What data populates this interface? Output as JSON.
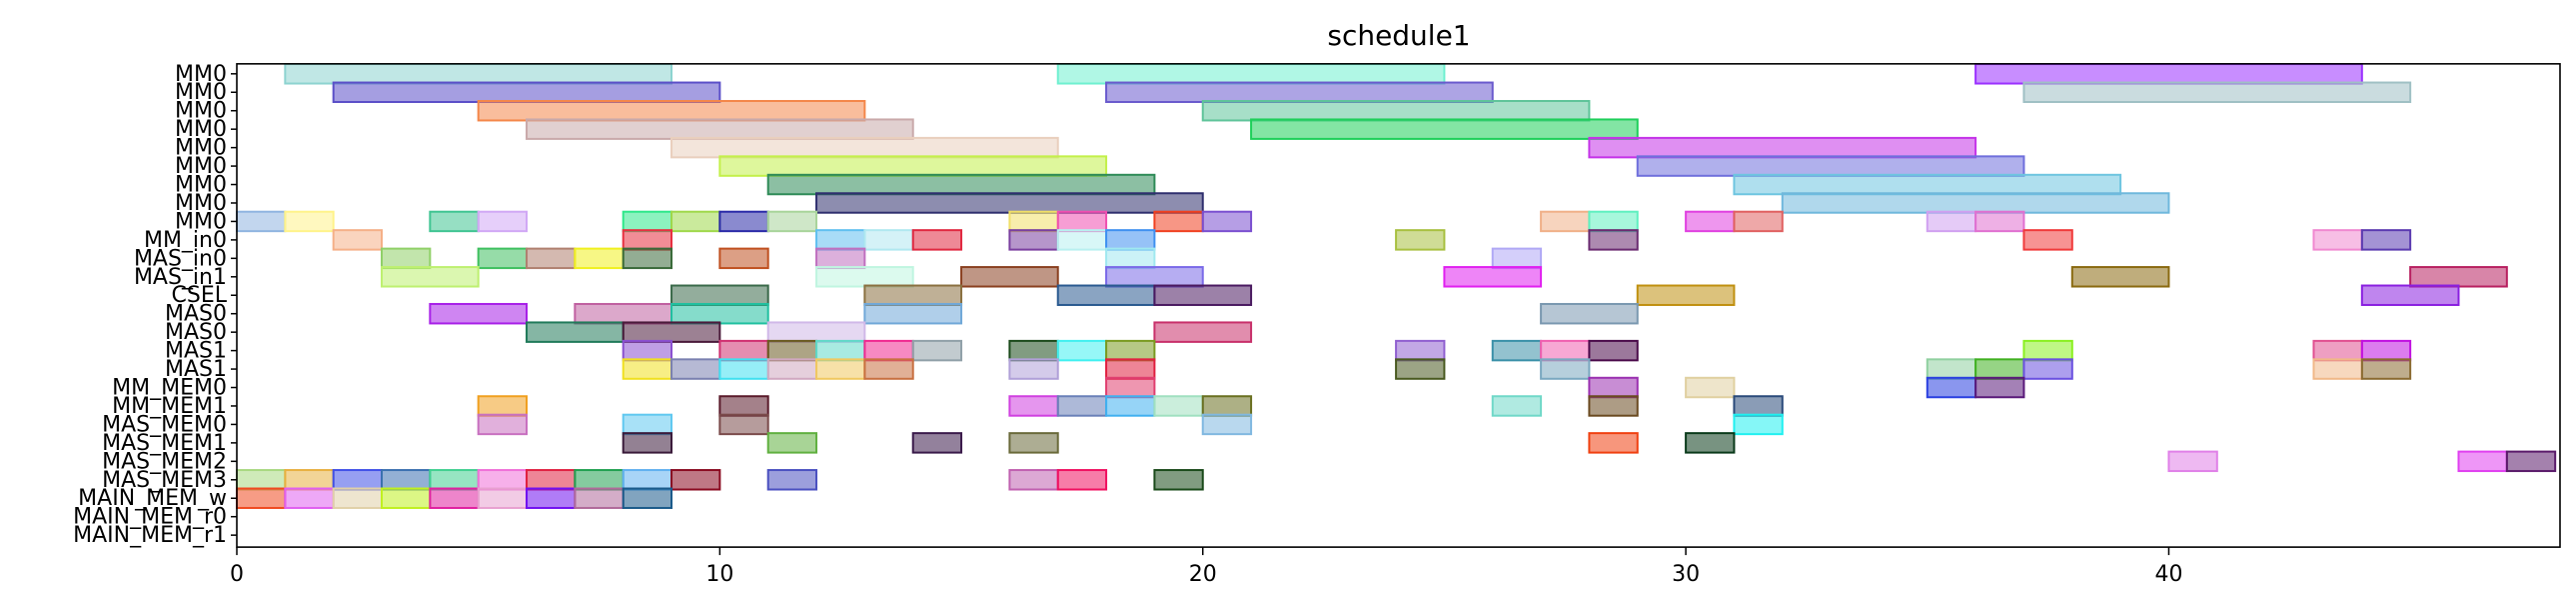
{
  "chart_data": {
    "type": "gantt",
    "title": "schedule1",
    "xlabel": "",
    "ylabel": "",
    "xlim": [
      0,
      48.1
    ],
    "x_ticks": [
      0,
      10,
      20,
      30,
      40
    ],
    "grid": false,
    "rows": [
      "MM0",
      "MM0",
      "MM0",
      "MM0",
      "MM0",
      "MM0",
      "MM0",
      "MM0",
      "MM0",
      "MM_in0",
      "MAS_in0",
      "MAS_in1",
      "CSEL",
      "MAS0",
      "MAS0",
      "MAS1",
      "MAS1",
      "MM_MEM0",
      "MM_MEM1",
      "MAS_MEM0",
      "MAS_MEM1",
      "MAS_MEM2",
      "MAS_MEM3",
      "MAIN_MEM_w",
      "MAIN_MEM_r0",
      "MAIN_MEM_r1"
    ],
    "tasks": [
      {
        "row": 0,
        "start": 1,
        "end": 9,
        "color": "#8dd3d0"
      },
      {
        "row": 0,
        "start": 17,
        "end": 25,
        "color": "#6ff0d0"
      },
      {
        "row": 0,
        "start": 36,
        "end": 44,
        "color": "#9b30ff"
      },
      {
        "row": 1,
        "start": 2,
        "end": 10,
        "color": "#5b4fc8"
      },
      {
        "row": 1,
        "start": 18,
        "end": 26,
        "color": "#6a5acd"
      },
      {
        "row": 1,
        "start": 37,
        "end": 45,
        "color": "#9fc0c4"
      },
      {
        "row": 2,
        "start": 5,
        "end": 13,
        "color": "#f4874a"
      },
      {
        "row": 2,
        "start": 20,
        "end": 28,
        "color": "#5fc49a"
      },
      {
        "row": 3,
        "start": 6,
        "end": 14,
        "color": "#c9a9aa"
      },
      {
        "row": 3,
        "start": 21,
        "end": 29,
        "color": "#1ecf5a"
      },
      {
        "row": 4,
        "start": 9,
        "end": 17,
        "color": "#e9cfbd"
      },
      {
        "row": 4,
        "start": 28,
        "end": 36,
        "color": "#c433e8"
      },
      {
        "row": 5,
        "start": 10,
        "end": 18,
        "color": "#c3f04a"
      },
      {
        "row": 5,
        "start": 29,
        "end": 37,
        "color": "#6f6fdc"
      },
      {
        "row": 6,
        "start": 11,
        "end": 19,
        "color": "#2e8b57"
      },
      {
        "row": 6,
        "start": 31,
        "end": 39,
        "color": "#6ec5e0"
      },
      {
        "row": 7,
        "start": 12,
        "end": 20,
        "color": "#2f2f6e"
      },
      {
        "row": 7,
        "start": 32,
        "end": 40,
        "color": "#6fb8dc"
      },
      {
        "row": 8,
        "start": 0,
        "end": 1,
        "color": "#8fb4e0"
      },
      {
        "row": 8,
        "start": 1,
        "end": 2,
        "color": "#fff38a"
      },
      {
        "row": 8,
        "start": 4,
        "end": 5,
        "color": "#3fc492"
      },
      {
        "row": 8,
        "start": 5,
        "end": 6,
        "color": "#d1a8f5"
      },
      {
        "row": 8,
        "start": 8,
        "end": 9,
        "color": "#2ee88a"
      },
      {
        "row": 8,
        "start": 9,
        "end": 10,
        "color": "#9fd84a"
      },
      {
        "row": 8,
        "start": 10,
        "end": 11,
        "color": "#2a2aa8"
      },
      {
        "row": 8,
        "start": 11,
        "end": 12,
        "color": "#a8d49a"
      },
      {
        "row": 8,
        "start": 16,
        "end": 17,
        "color": "#f0e068"
      },
      {
        "row": 8,
        "start": 17,
        "end": 18,
        "color": "#ef4fb0"
      },
      {
        "row": 8,
        "start": 19,
        "end": 20,
        "color": "#f04020"
      },
      {
        "row": 8,
        "start": 20,
        "end": 21,
        "color": "#7a4fd0"
      },
      {
        "row": 8,
        "start": 27,
        "end": 28,
        "color": "#f0b088"
      },
      {
        "row": 8,
        "start": 28,
        "end": 29,
        "color": "#5ff0c0"
      },
      {
        "row": 8,
        "start": 30,
        "end": 31,
        "color": "#e040e0"
      },
      {
        "row": 8,
        "start": 31,
        "end": 32,
        "color": "#e06060"
      },
      {
        "row": 8,
        "start": 35,
        "end": 36,
        "color": "#d0a0f0"
      },
      {
        "row": 8,
        "start": 36,
        "end": 37,
        "color": "#e070d0"
      },
      {
        "row": 9,
        "start": 2,
        "end": 3,
        "color": "#f5b088"
      },
      {
        "row": 9,
        "start": 8,
        "end": 9,
        "color": "#e83040"
      },
      {
        "row": 9,
        "start": 12,
        "end": 13,
        "color": "#60c0f0"
      },
      {
        "row": 9,
        "start": 13,
        "end": 14,
        "color": "#b0e8f0"
      },
      {
        "row": 9,
        "start": 14,
        "end": 15,
        "color": "#e02840"
      },
      {
        "row": 9,
        "start": 16,
        "end": 17,
        "color": "#7a3fa0"
      },
      {
        "row": 9,
        "start": 17,
        "end": 18,
        "color": "#b8f0f0"
      },
      {
        "row": 9,
        "start": 18,
        "end": 19,
        "color": "#3f90f0"
      },
      {
        "row": 9,
        "start": 24,
        "end": 25,
        "color": "#a8c040"
      },
      {
        "row": 9,
        "start": 28,
        "end": 29,
        "color": "#6a2a70"
      },
      {
        "row": 9,
        "start": 37,
        "end": 38,
        "color": "#f03a3a"
      },
      {
        "row": 9,
        "start": 43,
        "end": 44,
        "color": "#f088d0"
      },
      {
        "row": 9,
        "start": 44,
        "end": 45,
        "color": "#5a3ab0"
      },
      {
        "row": 10,
        "start": 3,
        "end": 4,
        "color": "#90d068"
      },
      {
        "row": 10,
        "start": 5,
        "end": 6,
        "color": "#3fc060"
      },
      {
        "row": 10,
        "start": 6,
        "end": 7,
        "color": "#b08070"
      },
      {
        "row": 10,
        "start": 7,
        "end": 8,
        "color": "#f0f020"
      },
      {
        "row": 10,
        "start": 8,
        "end": 9,
        "color": "#3a6a3a"
      },
      {
        "row": 10,
        "start": 10,
        "end": 11,
        "color": "#c05020"
      },
      {
        "row": 10,
        "start": 12,
        "end": 13,
        "color": "#c070c0"
      },
      {
        "row": 10,
        "start": 18,
        "end": 19,
        "color": "#a0e8f0"
      },
      {
        "row": 10,
        "start": 26,
        "end": 27,
        "color": "#b0a8f5"
      },
      {
        "row": 11,
        "start": 3,
        "end": 5,
        "color": "#bef070"
      },
      {
        "row": 11,
        "start": 12,
        "end": 14,
        "color": "#c0f5e0"
      },
      {
        "row": 11,
        "start": 15,
        "end": 17,
        "color": "#8a4020"
      },
      {
        "row": 11,
        "start": 18,
        "end": 20,
        "color": "#7a6ae8"
      },
      {
        "row": 11,
        "start": 25,
        "end": 27,
        "color": "#e020f0"
      },
      {
        "row": 11,
        "start": 38,
        "end": 40,
        "color": "#8a6a10"
      },
      {
        "row": 11,
        "start": 45,
        "end": 47,
        "color": "#b82060"
      },
      {
        "row": 12,
        "start": 9,
        "end": 11,
        "color": "#3a6a4a"
      },
      {
        "row": 12,
        "start": 13,
        "end": 15,
        "color": "#8a7040"
      },
      {
        "row": 12,
        "start": 17,
        "end": 19,
        "color": "#2a5a90"
      },
      {
        "row": 12,
        "start": 19,
        "end": 21,
        "color": "#4a1a60"
      },
      {
        "row": 12,
        "start": 29,
        "end": 31,
        "color": "#c09010"
      },
      {
        "row": 12,
        "start": 44,
        "end": 46,
        "color": "#8a20e0"
      },
      {
        "row": 13,
        "start": 4,
        "end": 6,
        "color": "#a820e8"
      },
      {
        "row": 13,
        "start": 7,
        "end": 9,
        "color": "#c060a0"
      },
      {
        "row": 13,
        "start": 9,
        "end": 11,
        "color": "#20c0a0"
      },
      {
        "row": 13,
        "start": 13,
        "end": 15,
        "color": "#70a8d8"
      },
      {
        "row": 13,
        "start": 27,
        "end": 29,
        "color": "#7a98b0"
      },
      {
        "row": 14,
        "start": 6,
        "end": 8,
        "color": "#207a5a"
      },
      {
        "row": 14,
        "start": 8,
        "end": 10,
        "color": "#4a1a3a"
      },
      {
        "row": 14,
        "start": 11,
        "end": 13,
        "color": "#d0b8e8"
      },
      {
        "row": 14,
        "start": 19,
        "end": 21,
        "color": "#c8306a"
      },
      {
        "row": 15,
        "start": 8,
        "end": 9,
        "color": "#8a50d0"
      },
      {
        "row": 15,
        "start": 10,
        "end": 11,
        "color": "#d03070"
      },
      {
        "row": 15,
        "start": 11,
        "end": 12,
        "color": "#6a5a20"
      },
      {
        "row": 15,
        "start": 12,
        "end": 13,
        "color": "#60d8c8"
      },
      {
        "row": 15,
        "start": 13,
        "end": 14,
        "color": "#f02890"
      },
      {
        "row": 15,
        "start": 14,
        "end": 15,
        "color": "#90a0a8"
      },
      {
        "row": 15,
        "start": 16,
        "end": 17,
        "color": "#1a4a1a"
      },
      {
        "row": 15,
        "start": 17,
        "end": 18,
        "color": "#40f0f0"
      },
      {
        "row": 15,
        "start": 18,
        "end": 19,
        "color": "#7a9a20"
      },
      {
        "row": 15,
        "start": 24,
        "end": 25,
        "color": "#9060d0"
      },
      {
        "row": 15,
        "start": 26,
        "end": 27,
        "color": "#3a90a8"
      },
      {
        "row": 15,
        "start": 27,
        "end": 28,
        "color": "#f060b0"
      },
      {
        "row": 15,
        "start": 28,
        "end": 29,
        "color": "#4a0a4a"
      },
      {
        "row": 15,
        "start": 37,
        "end": 38,
        "color": "#8af020"
      },
      {
        "row": 15,
        "start": 43,
        "end": 44,
        "color": "#e05090"
      },
      {
        "row": 15,
        "start": 44,
        "end": 45,
        "color": "#c010e0"
      },
      {
        "row": 16,
        "start": 8,
        "end": 9,
        "color": "#f0e020"
      },
      {
        "row": 16,
        "start": 9,
        "end": 10,
        "color": "#7a80b0"
      },
      {
        "row": 16,
        "start": 10,
        "end": 11,
        "color": "#40e0f0"
      },
      {
        "row": 16,
        "start": 11,
        "end": 12,
        "color": "#d0a8c0"
      },
      {
        "row": 16,
        "start": 12,
        "end": 13,
        "color": "#f0c860"
      },
      {
        "row": 16,
        "start": 13,
        "end": 14,
        "color": "#c87040"
      },
      {
        "row": 16,
        "start": 16,
        "end": 17,
        "color": "#b0a0d8"
      },
      {
        "row": 16,
        "start": 18,
        "end": 19,
        "color": "#e02040"
      },
      {
        "row": 16,
        "start": 24,
        "end": 25,
        "color": "#4a5a20"
      },
      {
        "row": 16,
        "start": 27,
        "end": 28,
        "color": "#7aa8c0"
      },
      {
        "row": 16,
        "start": 35,
        "end": 36,
        "color": "#90d0a0"
      },
      {
        "row": 16,
        "start": 36,
        "end": 37,
        "color": "#40b020"
      },
      {
        "row": 16,
        "start": 37,
        "end": 38,
        "color": "#6a50e0"
      },
      {
        "row": 16,
        "start": 43,
        "end": 44,
        "color": "#f0b888"
      },
      {
        "row": 16,
        "start": 44,
        "end": 45,
        "color": "#8a6a30"
      },
      {
        "row": 17,
        "start": 18,
        "end": 19,
        "color": "#e04070"
      },
      {
        "row": 17,
        "start": 28,
        "end": 29,
        "color": "#9a30b0"
      },
      {
        "row": 17,
        "start": 30,
        "end": 31,
        "color": "#e0d0a0"
      },
      {
        "row": 17,
        "start": 35,
        "end": 36,
        "color": "#2a40e0"
      },
      {
        "row": 17,
        "start": 36,
        "end": 37,
        "color": "#5a1a7a"
      },
      {
        "row": 18,
        "start": 5,
        "end": 6,
        "color": "#f0a020"
      },
      {
        "row": 18,
        "start": 10,
        "end": 11,
        "color": "#5a1a2a"
      },
      {
        "row": 18,
        "start": 16,
        "end": 17,
        "color": "#d040e0"
      },
      {
        "row": 18,
        "start": 17,
        "end": 18,
        "color": "#6a80b8"
      },
      {
        "row": 18,
        "start": 18,
        "end": 19,
        "color": "#40b0f0"
      },
      {
        "row": 18,
        "start": 19,
        "end": 20,
        "color": "#a0e0c0"
      },
      {
        "row": 18,
        "start": 20,
        "end": 21,
        "color": "#6a7020"
      },
      {
        "row": 18,
        "start": 26,
        "end": 27,
        "color": "#70d8c8"
      },
      {
        "row": 18,
        "start": 28,
        "end": 29,
        "color": "#6a4a20"
      },
      {
        "row": 18,
        "start": 31,
        "end": 32,
        "color": "#2a4a7a"
      },
      {
        "row": 19,
        "start": 5,
        "end": 6,
        "color": "#c870c0"
      },
      {
        "row": 19,
        "start": 10,
        "end": 11,
        "color": "#7a4a4a"
      },
      {
        "row": 19,
        "start": 8,
        "end": 9,
        "color": "#60c8f0"
      },
      {
        "row": 19,
        "start": 20,
        "end": 21,
        "color": "#80b8e0"
      },
      {
        "row": 19,
        "start": 31,
        "end": 32,
        "color": "#20f0f0"
      },
      {
        "row": 20,
        "start": 8,
        "end": 9,
        "color": "#3a1a3a"
      },
      {
        "row": 20,
        "start": 11,
        "end": 12,
        "color": "#60b040"
      },
      {
        "row": 20,
        "start": 14,
        "end": 15,
        "color": "#3a1a4a"
      },
      {
        "row": 20,
        "start": 16,
        "end": 17,
        "color": "#6a6a3a"
      },
      {
        "row": 20,
        "start": 28,
        "end": 29,
        "color": "#f04010"
      },
      {
        "row": 20,
        "start": 30,
        "end": 31,
        "color": "#0a3a1a"
      },
      {
        "row": 21,
        "start": 40,
        "end": 41,
        "color": "#e080e8"
      },
      {
        "row": 21,
        "start": 46,
        "end": 47,
        "color": "#e040f0"
      },
      {
        "row": 21,
        "start": 47,
        "end": 48,
        "color": "#5a1a6a"
      },
      {
        "row": 22,
        "start": 0,
        "end": 1,
        "color": "#a8d880"
      },
      {
        "row": 22,
        "start": 1,
        "end": 2,
        "color": "#e8b040"
      },
      {
        "row": 22,
        "start": 2,
        "end": 3,
        "color": "#4050e8"
      },
      {
        "row": 22,
        "start": 3,
        "end": 4,
        "color": "#3a70b0"
      },
      {
        "row": 22,
        "start": 4,
        "end": 5,
        "color": "#40d090"
      },
      {
        "row": 22,
        "start": 5,
        "end": 6,
        "color": "#f070d8"
      },
      {
        "row": 22,
        "start": 6,
        "end": 7,
        "color": "#e02040"
      },
      {
        "row": 22,
        "start": 7,
        "end": 8,
        "color": "#20a050"
      },
      {
        "row": 22,
        "start": 8,
        "end": 9,
        "color": "#60b0f0"
      },
      {
        "row": 22,
        "start": 9,
        "end": 10,
        "color": "#8a0a20"
      },
      {
        "row": 22,
        "start": 11,
        "end": 12,
        "color": "#4a50c0"
      },
      {
        "row": 22,
        "start": 16,
        "end": 17,
        "color": "#c060b0"
      },
      {
        "row": 22,
        "start": 17,
        "end": 18,
        "color": "#f01060"
      },
      {
        "row": 22,
        "start": 19,
        "end": 20,
        "color": "#1a4a1a"
      },
      {
        "row": 23,
        "start": 0,
        "end": 1,
        "color": "#f04a20"
      },
      {
        "row": 23,
        "start": 1,
        "end": 2,
        "color": "#e060f0"
      },
      {
        "row": 23,
        "start": 2,
        "end": 3,
        "color": "#e0d0a8"
      },
      {
        "row": 23,
        "start": 3,
        "end": 4,
        "color": "#c0f020"
      },
      {
        "row": 23,
        "start": 4,
        "end": 5,
        "color": "#e020a0"
      },
      {
        "row": 23,
        "start": 5,
        "end": 6,
        "color": "#e8a0d0"
      },
      {
        "row": 23,
        "start": 6,
        "end": 7,
        "color": "#7010f0"
      },
      {
        "row": 23,
        "start": 7,
        "end": 8,
        "color": "#b06a9a"
      },
      {
        "row": 23,
        "start": 8,
        "end": 9,
        "color": "#1a5a8a"
      }
    ]
  }
}
